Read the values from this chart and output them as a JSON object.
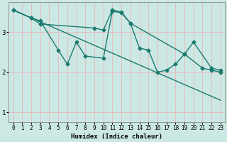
{
  "xlabel": "Humidex (Indice chaleur)",
  "xlim": [
    -0.5,
    23.5
  ],
  "ylim": [
    0.75,
    3.75
  ],
  "yticks": [
    1,
    2,
    3
  ],
  "xticks": [
    0,
    1,
    2,
    3,
    4,
    5,
    6,
    7,
    8,
    9,
    10,
    11,
    12,
    13,
    14,
    15,
    16,
    17,
    18,
    19,
    20,
    21,
    22,
    23
  ],
  "bg_color": "#cce8e4",
  "grid_color": "#e8b8b8",
  "line_color": "#1a7a6e",
  "line1_x": [
    0,
    2,
    3,
    5,
    6,
    7,
    8,
    10,
    11,
    12,
    13,
    19,
    20,
    22,
    23
  ],
  "line1_y": [
    3.55,
    3.35,
    3.28,
    2.55,
    2.2,
    2.75,
    2.4,
    2.35,
    3.52,
    3.48,
    3.22,
    2.45,
    2.75,
    2.1,
    2.05
  ],
  "line2_x": [
    0,
    2,
    3,
    9,
    10,
    11,
    12,
    13,
    14,
    15,
    16,
    17,
    18,
    19,
    21,
    22,
    23
  ],
  "line2_y": [
    3.55,
    3.35,
    3.2,
    3.1,
    3.05,
    3.55,
    3.5,
    3.22,
    2.6,
    2.55,
    2.0,
    2.05,
    2.2,
    2.45,
    2.1,
    2.05,
    2.0
  ],
  "line3_x": [
    0,
    23
  ],
  "line3_y": [
    3.55,
    1.3
  ],
  "marker": "D",
  "markersize": 2.5,
  "linewidth": 1.0
}
